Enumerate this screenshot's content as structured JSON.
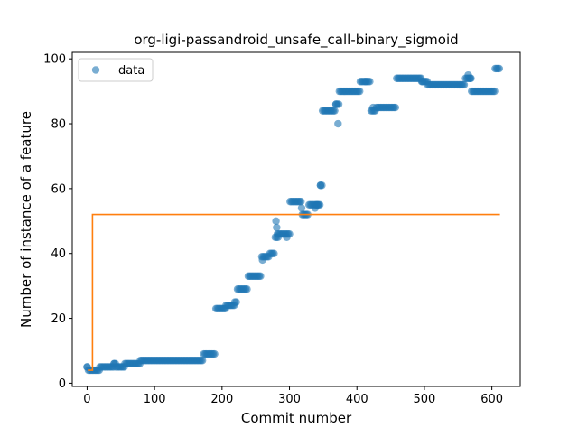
{
  "chart_data": {
    "type": "scatter",
    "title": "org-ligi-passandroid_unsafe_call-binary_sigmoid",
    "xlabel": "Commit number",
    "ylabel": "Number of instance of a feature",
    "xlim": [
      -22,
      642
    ],
    "ylim": [
      -1,
      102
    ],
    "xticks": [
      0,
      100,
      200,
      300,
      400,
      500,
      600
    ],
    "yticks": [
      0,
      20,
      40,
      60,
      80,
      100
    ],
    "grid": false,
    "legend_position": "top-left",
    "colors": {
      "data": "#1f77b4",
      "fit": "#ff7f0e"
    },
    "series": [
      {
        "name": "data",
        "style": "markers",
        "segments": [
          {
            "x0": 0,
            "x1": 1,
            "y": 5
          },
          {
            "x0": 2,
            "x1": 18,
            "y": 4
          },
          {
            "x0": 19,
            "x1": 39,
            "y": 5
          },
          {
            "x0": 40,
            "x1": 42,
            "y": 6
          },
          {
            "x0": 43,
            "x1": 55,
            "y": 5
          },
          {
            "x0": 56,
            "x1": 65,
            "y": 6
          },
          {
            "x0": 66,
            "x1": 78,
            "y": 6
          },
          {
            "x0": 79,
            "x1": 172,
            "y": 7
          },
          {
            "x0": 173,
            "x1": 190,
            "y": 9
          },
          {
            "x0": 191,
            "x1": 205,
            "y": 23
          },
          {
            "x0": 206,
            "x1": 218,
            "y": 24
          },
          {
            "x0": 219,
            "x1": 222,
            "y": 25
          },
          {
            "x0": 223,
            "x1": 238,
            "y": 29
          },
          {
            "x0": 239,
            "x1": 258,
            "y": 33
          },
          {
            "x0": 259,
            "x1": 270,
            "y": 39
          },
          {
            "x0": 271,
            "x1": 278,
            "y": 40
          },
          {
            "x0": 279,
            "x1": 281,
            "y": 45
          },
          {
            "x0": 282,
            "x1": 300,
            "y": 46
          },
          {
            "x0": 301,
            "x1": 318,
            "y": 56
          },
          {
            "x0": 319,
            "x1": 328,
            "y": 52
          },
          {
            "x0": 329,
            "x1": 345,
            "y": 55
          },
          {
            "x0": 346,
            "x1": 348,
            "y": 61
          },
          {
            "x0": 349,
            "x1": 368,
            "y": 84
          },
          {
            "x0": 369,
            "x1": 373,
            "y": 86
          },
          {
            "x0": 374,
            "x1": 404,
            "y": 90
          },
          {
            "x0": 405,
            "x1": 420,
            "y": 93
          },
          {
            "x0": 421,
            "x1": 428,
            "y": 84
          },
          {
            "x0": 429,
            "x1": 458,
            "y": 85
          },
          {
            "x0": 459,
            "x1": 495,
            "y": 94
          },
          {
            "x0": 496,
            "x1": 504,
            "y": 93
          },
          {
            "x0": 505,
            "x1": 560,
            "y": 92
          },
          {
            "x0": 561,
            "x1": 569,
            "y": 94
          },
          {
            "x0": 570,
            "x1": 604,
            "y": 90
          },
          {
            "x0": 605,
            "x1": 612,
            "y": 97
          }
        ],
        "extra_points": [
          [
            0,
            5
          ],
          [
            40,
            6
          ],
          [
            280,
            50
          ],
          [
            281,
            48
          ],
          [
            283,
            45
          ],
          [
            296,
            45
          ],
          [
            318,
            54
          ],
          [
            338,
            54
          ],
          [
            340,
            55
          ],
          [
            342,
            55
          ],
          [
            346,
            61
          ],
          [
            369,
            86
          ],
          [
            372,
            80
          ],
          [
            413,
            93
          ],
          [
            424,
            85
          ],
          [
            497,
            93
          ],
          [
            565,
            95
          ],
          [
            568,
            94
          ],
          [
            260,
            38
          ]
        ]
      },
      {
        "name": "",
        "style": "line",
        "points": [
          [
            1,
            4
          ],
          [
            8,
            4
          ],
          [
            8,
            52
          ],
          [
            612,
            52
          ]
        ]
      }
    ]
  }
}
